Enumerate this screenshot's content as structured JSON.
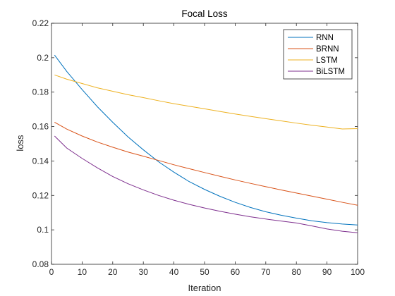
{
  "chart_data": {
    "type": "line",
    "title": "Focal Loss",
    "xlabel": "Iteration",
    "ylabel": "loss",
    "xlim": [
      0,
      100
    ],
    "ylim": [
      0.08,
      0.22
    ],
    "xticks": [
      "0",
      "10",
      "20",
      "30",
      "40",
      "50",
      "60",
      "70",
      "80",
      "90",
      "100"
    ],
    "yticks": [
      "0.08",
      "0.1",
      "0.12",
      "0.14",
      "0.16",
      "0.18",
      "0.2",
      "0.22"
    ],
    "grid": false,
    "legend_position": "top-right",
    "x": [
      1,
      5,
      10,
      15,
      20,
      25,
      30,
      35,
      40,
      45,
      50,
      55,
      60,
      65,
      70,
      75,
      80,
      85,
      90,
      95,
      100
    ],
    "series": [
      {
        "name": "RNN",
        "color": "#0072BD",
        "values": [
          0.2015,
          0.192,
          0.1815,
          0.1715,
          0.1625,
          0.154,
          0.1465,
          0.1395,
          0.1335,
          0.128,
          0.1235,
          0.1195,
          0.116,
          0.113,
          0.1105,
          0.1085,
          0.1068,
          0.1053,
          0.1042,
          0.1034,
          0.1028
        ]
      },
      {
        "name": "BRNN",
        "color": "#D95319",
        "values": [
          0.1625,
          0.1585,
          0.1545,
          0.151,
          0.148,
          0.1452,
          0.1428,
          0.1403,
          0.1378,
          0.1355,
          0.1333,
          0.1311,
          0.129,
          0.127,
          0.1251,
          0.1232,
          0.1214,
          0.1196,
          0.1178,
          0.116,
          0.1143
        ]
      },
      {
        "name": "LSTM",
        "color": "#EDB120",
        "values": [
          0.19,
          0.1875,
          0.185,
          0.1825,
          0.1805,
          0.1785,
          0.1768,
          0.175,
          0.1733,
          0.1718,
          0.1703,
          0.1688,
          0.1673,
          0.1659,
          0.1646,
          0.1633,
          0.162,
          0.1608,
          0.1597,
          0.1586,
          0.1588
        ]
      },
      {
        "name": "BiLSTM",
        "color": "#7E2F8E",
        "values": [
          0.1545,
          0.1475,
          0.1415,
          0.136,
          0.131,
          0.1268,
          0.1232,
          0.12,
          0.1172,
          0.1148,
          0.1127,
          0.1108,
          0.1091,
          0.1076,
          0.1063,
          0.1051,
          0.104,
          0.1023,
          0.1005,
          0.0992,
          0.0983
        ]
      }
    ]
  }
}
